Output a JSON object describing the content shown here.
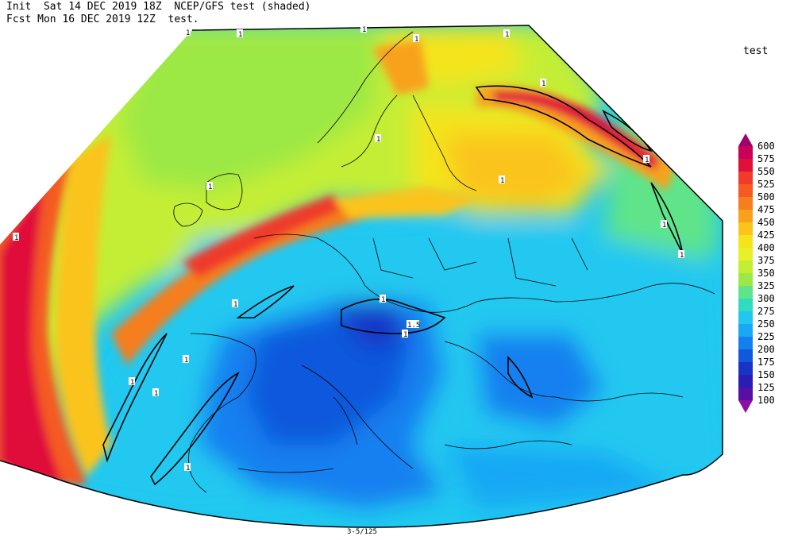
{
  "header": {
    "line1": "Init  Sat 14 DEC 2019 18Z  NCEP/GFS test (shaded)",
    "line2": "Fcst Mon 16 DEC 2019 12Z  test."
  },
  "field_name": "test",
  "colorbar": {
    "levels": [
      "600",
      "575",
      "550",
      "525",
      "500",
      "475",
      "450",
      "425",
      "400",
      "375",
      "350",
      "325",
      "300",
      "275",
      "250",
      "225",
      "200",
      "175",
      "150",
      "125",
      "100"
    ],
    "colors": [
      "#a0006a",
      "#c8005a",
      "#e0103a",
      "#f03a2a",
      "#f55a22",
      "#f67e1c",
      "#f8a21a",
      "#fac41a",
      "#f4e41c",
      "#e8f02a",
      "#c4ee34",
      "#9ce844",
      "#5ee48a",
      "#30dcc0",
      "#20c8f0",
      "#18a8f4",
      "#1480f0",
      "#1058dc",
      "#1834c8",
      "#2a1cb4",
      "#5810a4",
      "#8a10a4"
    ]
  },
  "contour_labels": [
    "1",
    "1",
    "1",
    "1",
    "1",
    "1",
    "1",
    "1",
    "1",
    "1",
    "1",
    "1",
    "1",
    "1",
    "1",
    "1",
    "1",
    "1",
    "1",
    "1",
    "1.5"
  ],
  "footer": "3-5/125"
}
